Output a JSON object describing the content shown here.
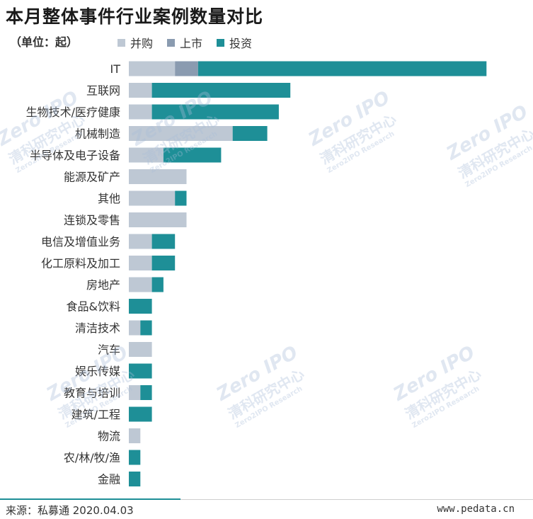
{
  "title": "本月整体事件行业案例数量对比",
  "unit_label": "（单位：起）",
  "legend": [
    {
      "name": "并购",
      "color": "#bec8d4"
    },
    {
      "name": "上市",
      "color": "#8a9bb0"
    },
    {
      "name": "投资",
      "color": "#1e8f97"
    }
  ],
  "watermark": {
    "line1": "Zero IPO",
    "line2": "清科研究中心",
    "line3": "Zero2IPO Research"
  },
  "footer": {
    "source": "来源：私募通 2020.04.03",
    "site": "www.pedata.cn"
  },
  "chart_data": {
    "type": "bar",
    "orientation": "horizontal",
    "stacked": true,
    "categories": [
      "IT",
      "互联网",
      "生物技术/医疗健康",
      "机械制造",
      "半导体及电子设备",
      "能源及矿产",
      "其他",
      "连锁及零售",
      "电信及增值业务",
      "化工原料及加工",
      "房地产",
      "食品&饮料",
      "清洁技术",
      "汽车",
      "娱乐传媒",
      "教育与培训",
      "建筑/工程",
      "物流",
      "农/林/牧/渔",
      "金融"
    ],
    "series": [
      {
        "name": "并购",
        "color": "#bec8d4",
        "values": [
          4,
          2,
          2,
          9,
          3,
          5,
          4,
          5,
          2,
          2,
          2,
          0,
          1,
          2,
          0,
          1,
          0,
          1,
          0,
          0
        ]
      },
      {
        "name": "上市",
        "color": "#8a9bb0",
        "values": [
          2,
          0,
          0,
          0,
          0,
          0,
          0,
          0,
          0,
          0,
          0,
          0,
          0,
          0,
          0,
          0,
          0,
          0,
          0,
          0
        ]
      },
      {
        "name": "投资",
        "color": "#1e8f97",
        "values": [
          25,
          12,
          11,
          3,
          5,
          0,
          1,
          0,
          2,
          2,
          1,
          2,
          1,
          0,
          2,
          1,
          2,
          0,
          1,
          1
        ]
      }
    ],
    "legend_position": "top",
    "grid": false
  }
}
